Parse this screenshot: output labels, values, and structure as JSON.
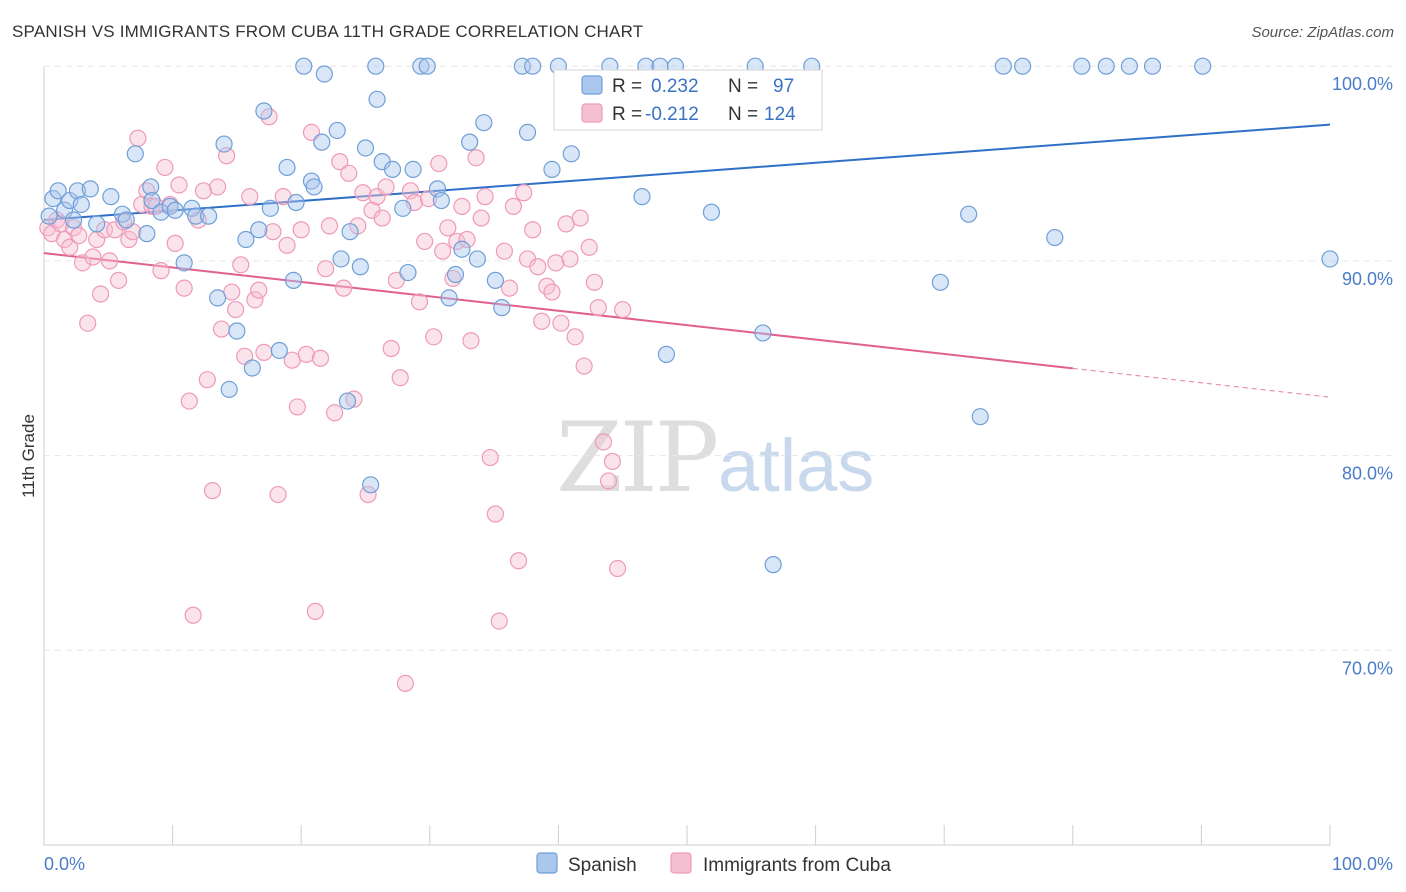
{
  "chart_data": {
    "type": "scatter",
    "title": "SPANISH VS IMMIGRANTS FROM CUBA 11TH GRADE CORRELATION CHART",
    "source": "Source: ZipAtlas.com",
    "xlabel": "",
    "ylabel": "11th Grade",
    "xlim": [
      0,
      100
    ],
    "ylim": [
      60,
      101.5
    ],
    "x_tick_labels": [
      "0.0%",
      "100.0%"
    ],
    "y_ticks": [
      {
        "value": 100,
        "label": "100.0%"
      },
      {
        "value": 90,
        "label": "90.0%"
      },
      {
        "value": 80,
        "label": "80.0%"
      },
      {
        "value": 70,
        "label": "70.0%"
      }
    ],
    "grid": true,
    "watermark": {
      "part1": "ZIP",
      "part2": "atlas"
    },
    "legend": {
      "r_label": "R =",
      "n_label": "N =",
      "entries": [
        {
          "r": "0.232",
          "n": "97"
        },
        {
          "r": "-0.212",
          "n": "124"
        }
      ]
    },
    "series": [
      {
        "name": "Spanish",
        "color": "#6f9fd8",
        "fill": "#aac7ee",
        "line_color": "#2f6fc6",
        "trend": {
          "x0": 0,
          "y0": 92.1,
          "x1": 100,
          "y1": 97.0,
          "solid_until": 100
        },
        "points": [
          [
            0.4,
            92.3
          ],
          [
            0.7,
            93.2
          ],
          [
            1.1,
            93.6
          ],
          [
            1.6,
            92.6
          ],
          [
            2.0,
            93.1
          ],
          [
            2.3,
            92.1
          ],
          [
            2.6,
            93.6
          ],
          [
            2.9,
            92.9
          ],
          [
            3.6,
            93.7
          ],
          [
            4.1,
            91.9
          ],
          [
            5.2,
            93.3
          ],
          [
            6.1,
            92.4
          ],
          [
            6.4,
            92.1
          ],
          [
            7.1,
            95.5
          ],
          [
            8.0,
            91.4
          ],
          [
            8.3,
            93.8
          ],
          [
            8.4,
            93.1
          ],
          [
            9.1,
            92.5
          ],
          [
            9.8,
            92.8
          ],
          [
            10.2,
            92.6
          ],
          [
            10.9,
            89.9
          ],
          [
            11.5,
            92.7
          ],
          [
            11.8,
            92.3
          ],
          [
            12.8,
            92.3
          ],
          [
            13.5,
            88.1
          ],
          [
            14.0,
            96.0
          ],
          [
            14.4,
            83.4
          ],
          [
            15.0,
            86.4
          ],
          [
            15.7,
            91.1
          ],
          [
            16.2,
            84.5
          ],
          [
            16.7,
            91.6
          ],
          [
            17.1,
            97.7
          ],
          [
            17.6,
            92.7
          ],
          [
            18.3,
            85.4
          ],
          [
            18.9,
            94.8
          ],
          [
            19.4,
            89.0
          ],
          [
            19.6,
            93.0
          ],
          [
            20.2,
            100.0
          ],
          [
            20.8,
            94.1
          ],
          [
            21.0,
            93.8
          ],
          [
            21.6,
            96.1
          ],
          [
            21.8,
            99.6
          ],
          [
            22.8,
            96.7
          ],
          [
            23.1,
            90.1
          ],
          [
            23.6,
            82.8
          ],
          [
            23.8,
            91.5
          ],
          [
            24.6,
            89.7
          ],
          [
            25.0,
            95.8
          ],
          [
            25.4,
            78.5
          ],
          [
            25.8,
            100.0
          ],
          [
            25.9,
            98.3
          ],
          [
            26.3,
            95.1
          ],
          [
            27.1,
            94.7
          ],
          [
            27.9,
            92.7
          ],
          [
            28.3,
            89.4
          ],
          [
            28.7,
            94.7
          ],
          [
            29.3,
            100.0
          ],
          [
            29.8,
            100.0
          ],
          [
            30.6,
            93.7
          ],
          [
            30.9,
            93.1
          ],
          [
            31.5,
            88.1
          ],
          [
            32.0,
            89.3
          ],
          [
            32.5,
            90.6
          ],
          [
            33.1,
            96.1
          ],
          [
            33.7,
            90.1
          ],
          [
            34.2,
            97.1
          ],
          [
            35.1,
            89.0
          ],
          [
            35.6,
            87.6
          ],
          [
            37.2,
            100.0
          ],
          [
            37.6,
            96.6
          ],
          [
            38.0,
            100.0
          ],
          [
            39.5,
            94.7
          ],
          [
            40.0,
            100.0
          ],
          [
            41.0,
            95.5
          ],
          [
            44.0,
            100.0
          ],
          [
            46.5,
            93.3
          ],
          [
            46.8,
            100.0
          ],
          [
            47.9,
            100.0
          ],
          [
            48.4,
            85.2
          ],
          [
            49.1,
            100.0
          ],
          [
            51.9,
            92.5
          ],
          [
            55.3,
            100.0
          ],
          [
            55.9,
            86.3
          ],
          [
            56.7,
            74.4
          ],
          [
            59.7,
            100.0
          ],
          [
            69.7,
            88.9
          ],
          [
            71.9,
            92.4
          ],
          [
            72.8,
            82.0
          ],
          [
            74.6,
            100.0
          ],
          [
            76.1,
            100.0
          ],
          [
            78.6,
            91.2
          ],
          [
            80.7,
            100.0
          ],
          [
            82.6,
            100.0
          ],
          [
            84.4,
            100.0
          ],
          [
            86.2,
            100.0
          ],
          [
            90.1,
            100.0
          ],
          [
            100.0,
            90.1
          ]
        ]
      },
      {
        "name": "Immigrants from Cuba",
        "color": "#ee9ab8",
        "fill": "#f6c0d3",
        "line_color": "#e0608f",
        "trend": {
          "x0": 0,
          "y0": 90.4,
          "x1": 100,
          "y1": 83.0,
          "solid_until": 80
        },
        "points": [
          [
            0.3,
            91.7
          ],
          [
            0.6,
            91.4
          ],
          [
            1.0,
            92.1
          ],
          [
            1.3,
            91.9
          ],
          [
            1.6,
            91.1
          ],
          [
            2.0,
            90.7
          ],
          [
            2.3,
            91.7
          ],
          [
            2.7,
            91.3
          ],
          [
            3.0,
            89.9
          ],
          [
            3.4,
            86.8
          ],
          [
            3.8,
            90.2
          ],
          [
            4.1,
            91.1
          ],
          [
            4.4,
            88.3
          ],
          [
            4.7,
            91.6
          ],
          [
            5.1,
            90.0
          ],
          [
            5.5,
            91.6
          ],
          [
            5.8,
            89.0
          ],
          [
            6.2,
            92.0
          ],
          [
            6.6,
            91.1
          ],
          [
            6.9,
            91.5
          ],
          [
            7.3,
            96.3
          ],
          [
            7.6,
            92.9
          ],
          [
            8.0,
            93.6
          ],
          [
            8.4,
            92.8
          ],
          [
            8.7,
            92.8
          ],
          [
            9.1,
            89.5
          ],
          [
            9.4,
            94.8
          ],
          [
            9.8,
            92.9
          ],
          [
            10.2,
            90.9
          ],
          [
            10.5,
            93.9
          ],
          [
            10.9,
            88.6
          ],
          [
            11.3,
            82.8
          ],
          [
            11.6,
            71.8
          ],
          [
            12.0,
            92.1
          ],
          [
            12.4,
            93.6
          ],
          [
            12.7,
            83.9
          ],
          [
            13.1,
            78.2
          ],
          [
            13.5,
            93.8
          ],
          [
            13.8,
            86.5
          ],
          [
            14.2,
            95.4
          ],
          [
            14.6,
            88.4
          ],
          [
            14.9,
            87.5
          ],
          [
            15.3,
            89.8
          ],
          [
            15.6,
            85.1
          ],
          [
            16.0,
            93.3
          ],
          [
            16.4,
            88.0
          ],
          [
            16.7,
            88.5
          ],
          [
            17.1,
            85.3
          ],
          [
            17.5,
            97.4
          ],
          [
            17.8,
            91.5
          ],
          [
            18.2,
            78.0
          ],
          [
            18.6,
            93.3
          ],
          [
            18.9,
            90.8
          ],
          [
            19.3,
            84.9
          ],
          [
            19.7,
            82.5
          ],
          [
            20.0,
            91.6
          ],
          [
            20.4,
            85.2
          ],
          [
            20.8,
            96.6
          ],
          [
            21.1,
            72.0
          ],
          [
            21.5,
            85.0
          ],
          [
            21.9,
            89.6
          ],
          [
            22.2,
            91.8
          ],
          [
            22.6,
            82.2
          ],
          [
            23.0,
            95.1
          ],
          [
            23.3,
            88.6
          ],
          [
            23.7,
            94.5
          ],
          [
            24.1,
            82.9
          ],
          [
            24.4,
            91.8
          ],
          [
            24.8,
            93.5
          ],
          [
            25.2,
            78.0
          ],
          [
            25.5,
            92.6
          ],
          [
            25.9,
            93.3
          ],
          [
            26.3,
            92.2
          ],
          [
            26.6,
            93.8
          ],
          [
            27.0,
            85.5
          ],
          [
            27.4,
            89.0
          ],
          [
            27.7,
            84.0
          ],
          [
            28.1,
            68.3
          ],
          [
            28.5,
            93.6
          ],
          [
            28.8,
            93.0
          ],
          [
            29.2,
            87.9
          ],
          [
            29.6,
            91.0
          ],
          [
            29.9,
            93.2
          ],
          [
            30.3,
            86.1
          ],
          [
            30.7,
            95.0
          ],
          [
            31.0,
            90.5
          ],
          [
            31.4,
            91.7
          ],
          [
            31.8,
            89.1
          ],
          [
            32.1,
            91.0
          ],
          [
            32.5,
            92.8
          ],
          [
            32.9,
            91.1
          ],
          [
            33.2,
            85.9
          ],
          [
            33.6,
            95.3
          ],
          [
            34.0,
            92.2
          ],
          [
            34.3,
            93.3
          ],
          [
            34.7,
            79.9
          ],
          [
            35.1,
            77.0
          ],
          [
            35.4,
            71.5
          ],
          [
            35.8,
            90.5
          ],
          [
            36.2,
            88.6
          ],
          [
            36.5,
            92.8
          ],
          [
            36.9,
            74.6
          ],
          [
            37.3,
            93.5
          ],
          [
            37.6,
            90.1
          ],
          [
            38.0,
            91.6
          ],
          [
            38.4,
            89.7
          ],
          [
            38.7,
            86.9
          ],
          [
            39.1,
            88.7
          ],
          [
            39.5,
            88.4
          ],
          [
            39.8,
            89.9
          ],
          [
            40.2,
            86.8
          ],
          [
            40.6,
            91.9
          ],
          [
            40.9,
            90.1
          ],
          [
            41.3,
            86.1
          ],
          [
            41.7,
            92.2
          ],
          [
            42.0,
            84.6
          ],
          [
            42.4,
            90.7
          ],
          [
            42.8,
            88.9
          ],
          [
            43.1,
            87.6
          ],
          [
            43.5,
            80.7
          ],
          [
            43.9,
            78.7
          ],
          [
            44.2,
            79.7
          ],
          [
            44.6,
            74.2
          ],
          [
            45.0,
            87.5
          ]
        ]
      }
    ],
    "legend_bottom": [
      "Spanish",
      "Immigrants from Cuba"
    ]
  }
}
